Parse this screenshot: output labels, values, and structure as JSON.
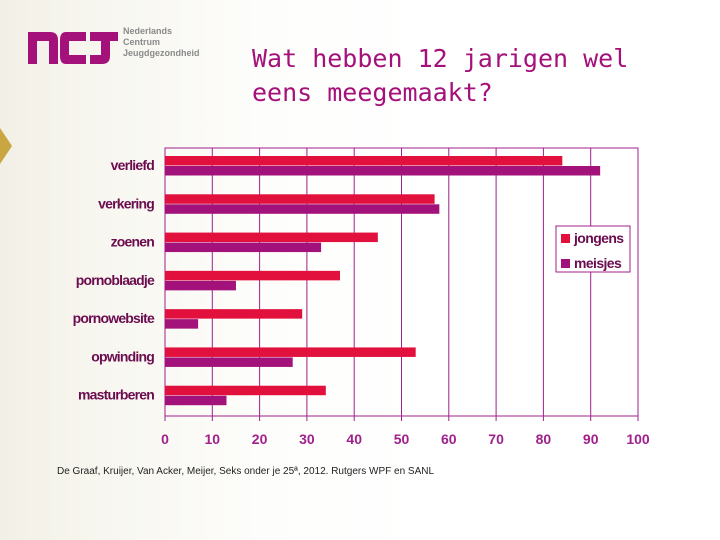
{
  "logo": {
    "mark": "ncj",
    "lines": [
      "Nederlands",
      "Centrum",
      "Jeugdgezondheid"
    ]
  },
  "title": {
    "line1": "Wat hebben 12 jarigen wel",
    "line2": "eens meegemaakt?"
  },
  "source": "De Graaf, Kruijer, Van Acker, Meijer, Seks onder je 25ª, 2012. Rutgers WPF en SANL",
  "colors": {
    "jongens": "#e2103d",
    "meisjes": "#a3127a",
    "title": "#a4117a",
    "grid": "#a0208c"
  },
  "chart_data": {
    "type": "bar",
    "orientation": "horizontal",
    "categories": [
      "verliefd",
      "verkering",
      "zoenen",
      "pornoblaadje",
      "pornowebsite",
      "opwinding",
      "masturberen"
    ],
    "series": [
      {
        "name": "jongens",
        "values": [
          84,
          57,
          45,
          37,
          29,
          53,
          34
        ]
      },
      {
        "name": "meisjes",
        "values": [
          92,
          58,
          33,
          15,
          7,
          27,
          13
        ]
      }
    ],
    "xlim": [
      0,
      100
    ],
    "xticks": [
      "0",
      "10",
      "20",
      "30",
      "40",
      "50",
      "60",
      "70",
      "80",
      "90",
      "100"
    ],
    "grid": true,
    "legend_position": "right"
  }
}
